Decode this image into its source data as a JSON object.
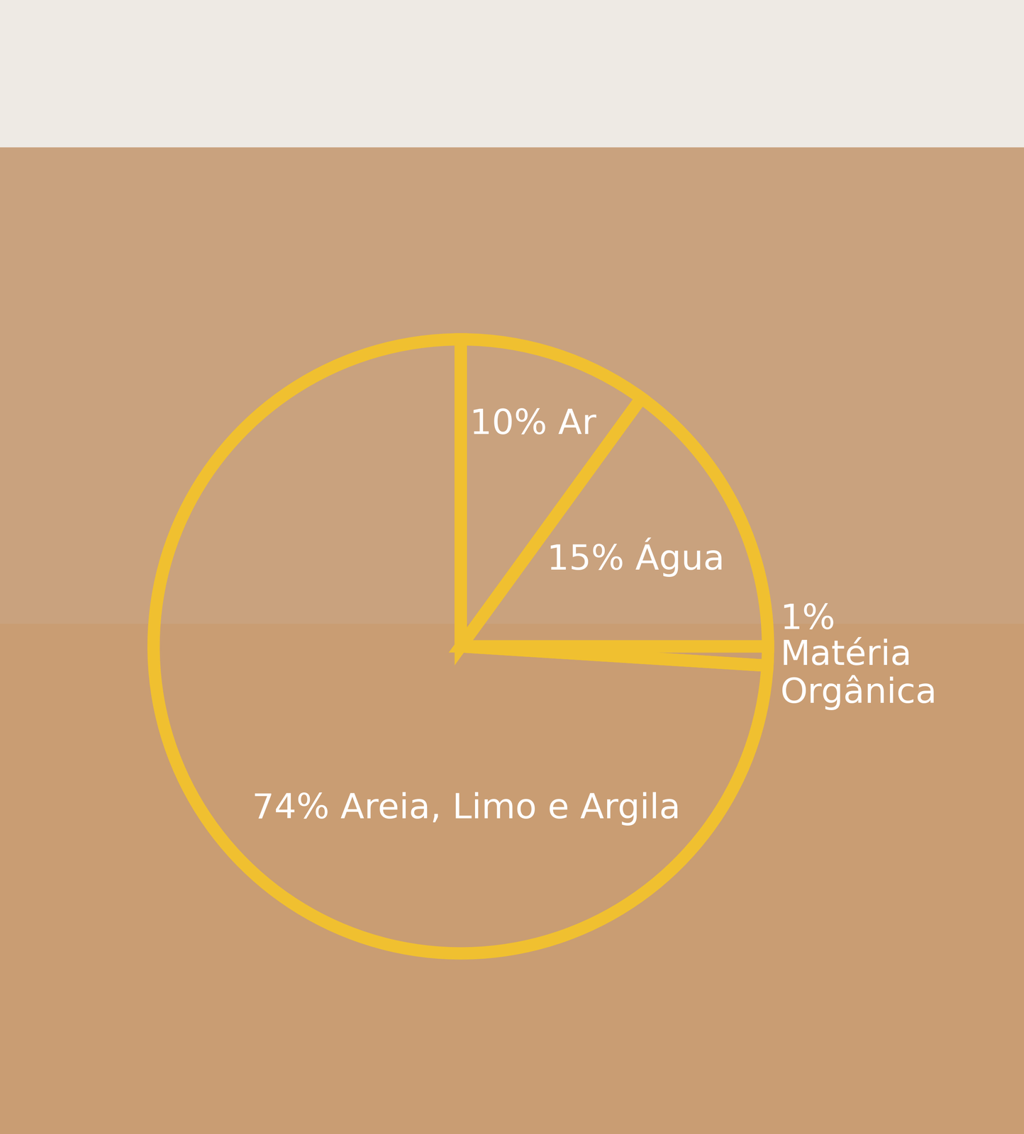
{
  "chart_data": {
    "type": "pie",
    "categories": [
      "Ar",
      "Água",
      "Matéria Orgânica",
      "Areia, Limo e Argila"
    ],
    "values": [
      10,
      15,
      1,
      74
    ],
    "value_labels": [
      "10% Ar",
      "15% Água",
      "1%\nMatéria\nOrgânica",
      "74% Areia, Limo e Argila"
    ],
    "color": "#f0c030"
  }
}
